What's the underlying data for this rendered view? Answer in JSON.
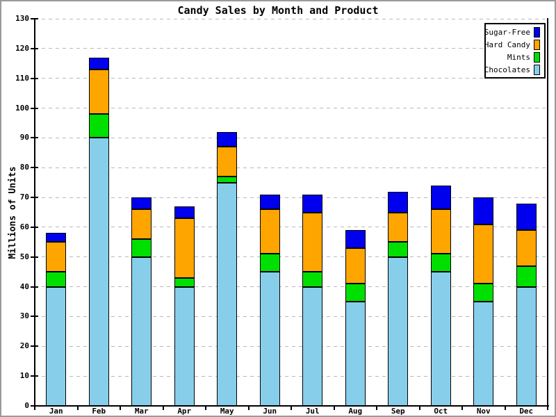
{
  "window": {
    "background": "#ffffff",
    "frame_color": "#9a9a9a"
  },
  "chart_data": {
    "type": "bar",
    "stacked": true,
    "title": "Candy Sales by Month and Product",
    "xlabel": "",
    "ylabel": "Millions of Units",
    "categories": [
      "Jan",
      "Feb",
      "Mar",
      "Apr",
      "May",
      "Jun",
      "Jul",
      "Aug",
      "Sep",
      "Oct",
      "Nov",
      "Dec"
    ],
    "series": [
      {
        "name": "Chocolates",
        "color": "#87CEEB",
        "values": [
          40,
          90,
          50,
          40,
          75,
          45,
          40,
          35,
          50,
          45,
          35,
          40
        ]
      },
      {
        "name": "Mints",
        "color": "#00E000",
        "values": [
          5,
          8,
          6,
          3,
          2,
          6,
          5,
          6,
          5,
          6,
          6,
          7
        ]
      },
      {
        "name": "Hard Candy",
        "color": "#FFA500",
        "values": [
          10,
          15,
          10,
          20,
          10,
          15,
          20,
          12,
          10,
          15,
          20,
          12
        ]
      },
      {
        "name": "Sugar-Free",
        "color": "#0000EE",
        "values": [
          3,
          4,
          4,
          4,
          5,
          5,
          6,
          6,
          7,
          8,
          9,
          9
        ]
      }
    ],
    "ylim": [
      0,
      130
    ],
    "ytick_step": 10,
    "yticks": [
      0,
      10,
      20,
      30,
      40,
      50,
      60,
      70,
      80,
      90,
      100,
      110,
      120,
      130
    ],
    "grid": true,
    "grid_color": "#b8b8b8",
    "bar_outline_color": "#000000",
    "legend_position": "top-right",
    "legend_order": [
      "Sugar-Free",
      "Hard Candy",
      "Mints",
      "Chocolates"
    ]
  }
}
